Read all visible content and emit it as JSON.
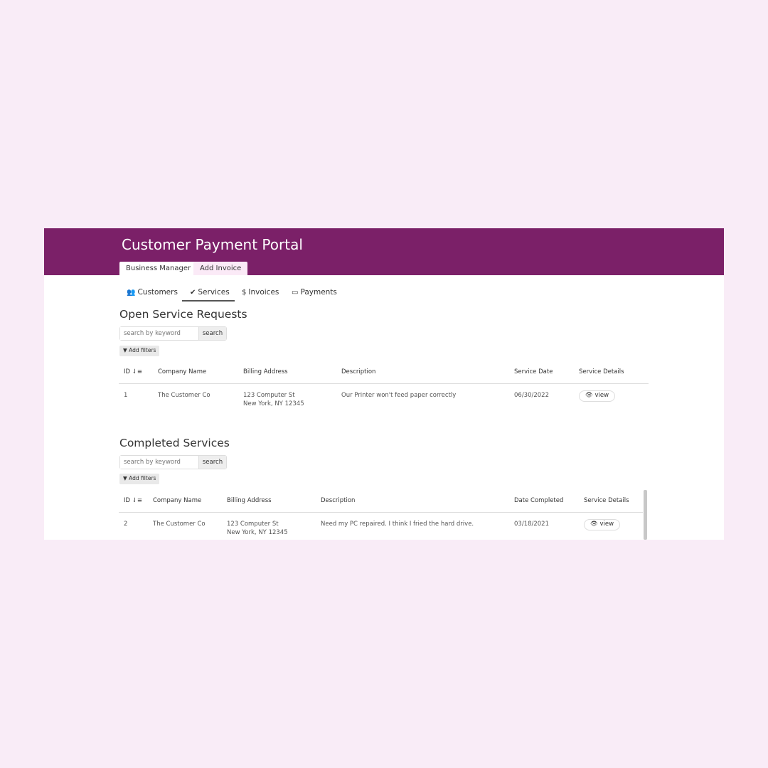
{
  "app": {
    "title": "Customer Payment Portal",
    "tabs": [
      "Business Manager",
      "Add Invoice"
    ]
  },
  "nav": [
    {
      "label": "Customers",
      "icon": "users-icon"
    },
    {
      "label": "Services",
      "icon": "check-circle-icon",
      "active": true
    },
    {
      "label": "Invoices",
      "icon": "dollar-icon"
    },
    {
      "label": "Payments",
      "icon": "credit-card-icon"
    }
  ],
  "colors": {
    "header": "#7b2068",
    "background": "#f9ecf7"
  },
  "open": {
    "title": "Open Service Requests",
    "search_placeholder": "search by keyword",
    "search_label": "search",
    "filters_label": "Add filters",
    "columns": [
      "ID",
      "Company Name",
      "Billing Address",
      "Description",
      "Service Date",
      "Service Details"
    ],
    "rows": [
      {
        "id": "1",
        "company": "The Customer Co",
        "address1": "123 Computer St",
        "address2": "New York, NY 12345",
        "description": "Our Printer won't feed paper correctly",
        "date": "06/30/2022",
        "action": "view"
      }
    ]
  },
  "completed": {
    "title": "Completed Services",
    "search_placeholder": "search by keyword",
    "search_label": "search",
    "filters_label": "Add filters",
    "columns": [
      "ID",
      "Company Name",
      "Billing Address",
      "Description",
      "Date Completed",
      "Service Details"
    ],
    "rows": [
      {
        "id": "2",
        "company": "The Customer Co",
        "address1": "123 Computer St",
        "address2": "New York, NY 12345",
        "description": "Need my PC repaired. I think I fried the hard drive.",
        "date": "03/18/2021",
        "action": "view"
      }
    ]
  }
}
